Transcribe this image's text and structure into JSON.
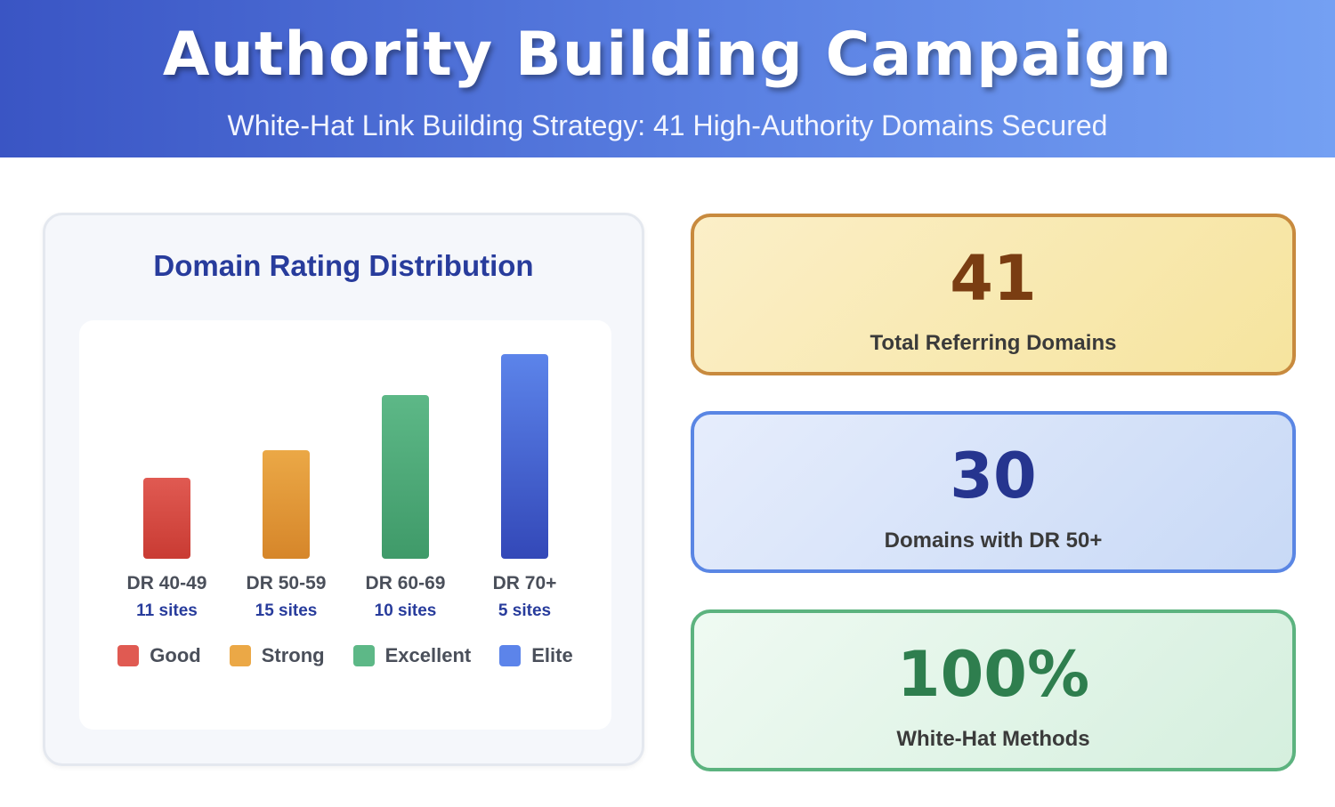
{
  "header": {
    "title": "Authority Building Campaign",
    "subtitle": "White-Hat Link Building Strategy: 41 High-Authority Domains Secured"
  },
  "chart_data": {
    "type": "bar",
    "title": "Domain Rating Distribution",
    "categories": [
      "DR 40-49",
      "DR 50-59",
      "DR 60-69",
      "DR 70+"
    ],
    "values": [
      11,
      15,
      10,
      5
    ],
    "value_labels": [
      "11 sites",
      "15 sites",
      "10 sites",
      "5 sites"
    ],
    "bar_colors": [
      [
        "#e05a52",
        "#c93b33"
      ],
      [
        "#eba846",
        "#d6862a"
      ],
      [
        "#5db887",
        "#3f9a69"
      ],
      [
        "#5c84ea",
        "#3348b8"
      ]
    ],
    "legend": [
      {
        "label": "Good",
        "color": "#e05a52"
      },
      {
        "label": "Strong",
        "color": "#eba846"
      },
      {
        "label": "Excellent",
        "color": "#5db887"
      },
      {
        "label": "Elite",
        "color": "#5c84ea"
      }
    ],
    "label_color": "#4a4f5a",
    "value_label_color": "#283c9c"
  },
  "stats": [
    {
      "value": "41",
      "label": "Total Referring Domains"
    },
    {
      "value": "30",
      "label": "Domains with DR 50+"
    },
    {
      "value": "100%",
      "label": "White-Hat Methods"
    }
  ]
}
